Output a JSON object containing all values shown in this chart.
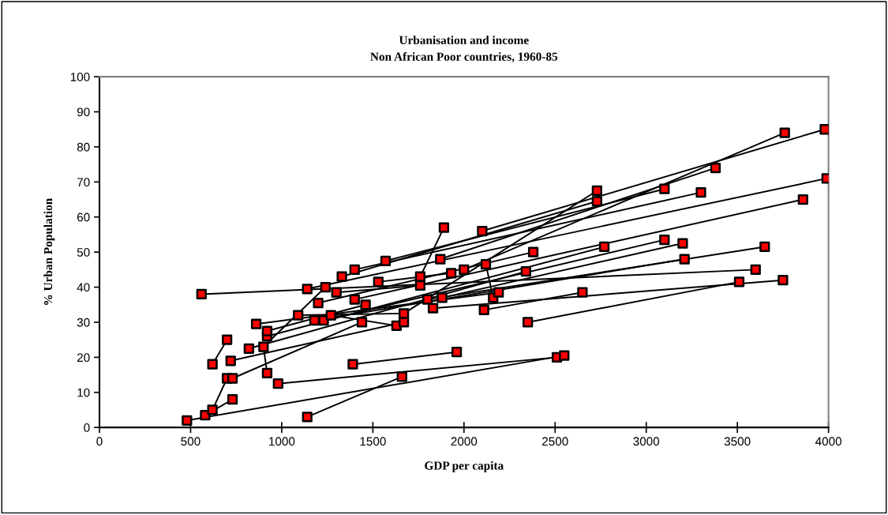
{
  "chart_data": {
    "type": "line",
    "title": "Urbanisation and income",
    "subtitle": "Non African Poor countries, 1960-85",
    "xlabel": "GDP per capita",
    "ylabel": "% Urban Population",
    "xlim": [
      0,
      4000
    ],
    "xticks": [
      0,
      500,
      1000,
      1500,
      2000,
      2500,
      3000,
      3500,
      4000
    ],
    "ylim": [
      0,
      100
    ],
    "yticks": [
      0,
      10,
      20,
      30,
      40,
      50,
      60,
      70,
      80,
      90,
      100
    ],
    "grid": false,
    "legend": false,
    "line_style": "solid",
    "series": [
      {
        "color": "#000000",
        "x": [
          560,
          3600
        ],
        "values": [
          38,
          45
        ]
      },
      {
        "color": "#000000",
        "x": [
          480,
          2550
        ],
        "values": [
          2,
          20.5
        ]
      },
      {
        "color": "#000000",
        "x": [
          980,
          2510
        ],
        "values": [
          12.5,
          20
        ]
      },
      {
        "color": "#000000",
        "x": [
          580,
          730
        ],
        "values": [
          3.5,
          8
        ]
      },
      {
        "color": "#000000",
        "x": [
          620,
          700
        ],
        "values": [
          5,
          14
        ]
      },
      {
        "color": "#000000",
        "x": [
          620,
          700
        ],
        "values": [
          18,
          25
        ]
      },
      {
        "color": "#000000",
        "x": [
          730,
          1440
        ],
        "values": [
          14,
          30
        ]
      },
      {
        "color": "#000000",
        "x": [
          920,
          900,
          1240
        ],
        "values": [
          15.5,
          23,
          40
        ]
      },
      {
        "color": "#000000",
        "x": [
          720,
          1670
        ],
        "values": [
          19,
          30
        ]
      },
      {
        "color": "#000000",
        "x": [
          820,
          2340
        ],
        "values": [
          22.5,
          44.5
        ]
      },
      {
        "color": "#000000",
        "x": [
          920,
          2770
        ],
        "values": [
          26,
          51.5
        ]
      },
      {
        "color": "#000000",
        "x": [
          920,
          1460
        ],
        "values": [
          27.5,
          35
        ]
      },
      {
        "color": "#000000",
        "x": [
          860,
          2190
        ],
        "values": [
          29.5,
          38.5
        ]
      },
      {
        "color": "#000000",
        "x": [
          1140,
          1660
        ],
        "values": [
          3,
          14.5
        ]
      },
      {
        "color": "#000000",
        "x": [
          1390,
          1960
        ],
        "values": [
          18,
          21.5
        ]
      },
      {
        "color": "#000000",
        "x": [
          1140,
          3990
        ],
        "values": [
          39.5,
          71
        ]
      },
      {
        "color": "#000000",
        "x": [
          1270,
          1630
        ],
        "values": [
          32,
          29
        ]
      },
      {
        "color": "#000000",
        "x": [
          1180,
          3210
        ],
        "values": [
          30.5,
          48
        ]
      },
      {
        "color": "#000000",
        "x": [
          1230,
          3100
        ],
        "values": [
          30.5,
          53.5
        ]
      },
      {
        "color": "#000000",
        "x": [
          1200,
          2380
        ],
        "values": [
          35.5,
          50
        ]
      },
      {
        "color": "#000000",
        "x": [
          1300,
          1760
        ],
        "values": [
          38.5,
          40.5
        ]
      },
      {
        "color": "#000000",
        "x": [
          1330,
          2730
        ],
        "values": [
          43,
          64.5
        ]
      },
      {
        "color": "#000000",
        "x": [
          1400,
          3300
        ],
        "values": [
          45,
          67
        ]
      },
      {
        "color": "#000000",
        "x": [
          1400,
          3860
        ],
        "values": [
          36.5,
          65
        ]
      },
      {
        "color": "#000000",
        "x": [
          1530,
          1930
        ],
        "values": [
          41.5,
          44
        ]
      },
      {
        "color": "#000000",
        "x": [
          1570,
          3100
        ],
        "values": [
          47.5,
          68
        ]
      },
      {
        "color": "#000000",
        "x": [
          1670,
          2730
        ],
        "values": [
          32.5,
          67.5
        ]
      },
      {
        "color": "#000000",
        "x": [
          1760,
          1890
        ],
        "values": [
          43,
          57
        ]
      },
      {
        "color": "#000000",
        "x": [
          1800,
          3650
        ],
        "values": [
          36.5,
          51.5
        ]
      },
      {
        "color": "#000000",
        "x": [
          1830,
          3750
        ],
        "values": [
          34,
          42
        ]
      },
      {
        "color": "#000000",
        "x": [
          1870,
          3380
        ],
        "values": [
          48,
          74
        ]
      },
      {
        "color": "#000000",
        "x": [
          1880,
          3200
        ],
        "values": [
          37,
          52.5
        ]
      },
      {
        "color": "#000000",
        "x": [
          2000,
          3760
        ],
        "values": [
          45,
          84
        ]
      },
      {
        "color": "#000000",
        "x": [
          2100,
          3980
        ],
        "values": [
          56,
          85
        ]
      },
      {
        "color": "#000000",
        "x": [
          2350,
          3510
        ],
        "values": [
          30,
          41.5
        ]
      },
      {
        "color": "#000000",
        "x": [
          2110,
          2650
        ],
        "values": [
          33.5,
          38.5
        ]
      },
      {
        "color": "#000000",
        "x": [
          2120,
          2160
        ],
        "values": [
          46.5,
          37
        ]
      },
      {
        "color": "#000000",
        "x": [
          1090,
          1670
        ],
        "values": [
          32,
          32.5
        ]
      },
      {
        "type": "scatter",
        "color": "#ff0000",
        "marker": "square",
        "x": [
          480,
          580,
          620,
          730,
          700,
          730,
          620,
          720,
          700,
          820,
          900,
          920,
          920,
          920,
          860,
          980,
          1140,
          1090,
          1180,
          1230,
          1270,
          1140,
          1200,
          1240,
          1300,
          1330,
          1400,
          1390,
          1400,
          1440,
          1460,
          1530,
          1570,
          1630,
          1660,
          1670,
          1670,
          1760,
          1760,
          1800,
          1830,
          1870,
          1890,
          1880,
          1930,
          1960,
          2000,
          2100,
          2120,
          2110,
          2160,
          2190,
          2340,
          2350,
          2380,
          2510,
          2550,
          2650,
          2730,
          2730,
          2770,
          3100,
          3100,
          3200,
          3210,
          3300,
          3380,
          3510,
          3600,
          3650,
          3750,
          3760,
          3860,
          3980,
          3990,
          560
        ],
        "values": [
          2,
          3.5,
          5,
          8,
          14,
          14,
          18,
          19,
          25,
          22.5,
          23,
          15.5,
          26,
          27.5,
          29.5,
          12.5,
          3,
          32,
          30.5,
          30.5,
          32,
          39.5,
          35.5,
          40,
          38.5,
          43,
          45,
          18,
          36.5,
          30,
          35,
          41.5,
          47.5,
          29,
          14.5,
          32.5,
          30,
          40.5,
          43,
          36.5,
          34,
          48,
          57,
          37,
          44,
          21.5,
          45,
          56,
          46.5,
          33.5,
          37,
          38.5,
          44.5,
          30,
          50,
          20,
          20.5,
          38.5,
          67.5,
          64.5,
          51.5,
          68,
          53.5,
          52.5,
          48,
          67,
          74,
          41.5,
          45,
          51.5,
          42,
          84,
          65,
          85,
          71,
          38
        ]
      }
    ]
  }
}
